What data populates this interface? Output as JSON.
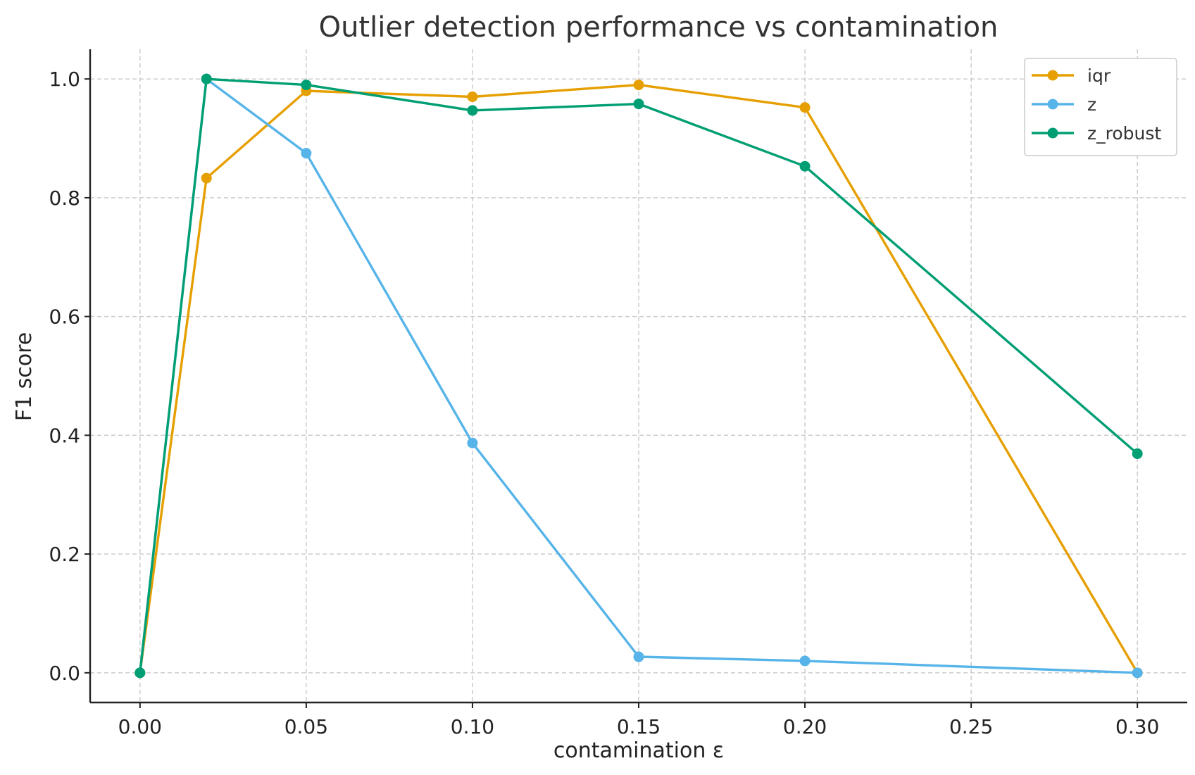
{
  "chart_data": {
    "type": "line",
    "title": "Outlier detection performance vs contamination",
    "xlabel": "contamination ε",
    "ylabel": "F1 score",
    "xlim": [
      -0.015,
      0.315
    ],
    "ylim": [
      -0.05,
      1.05
    ],
    "xticks": [
      0.0,
      0.05,
      0.1,
      0.15,
      0.2,
      0.25,
      0.3
    ],
    "xtick_labels": [
      "0.00",
      "0.05",
      "0.10",
      "0.15",
      "0.20",
      "0.25",
      "0.30"
    ],
    "yticks": [
      0.0,
      0.2,
      0.4,
      0.6,
      0.8,
      1.0
    ],
    "ytick_labels": [
      "0.0",
      "0.2",
      "0.4",
      "0.6",
      "0.8",
      "1.0"
    ],
    "grid": true,
    "legend_position": "top-right",
    "x": [
      0.0,
      0.02,
      0.05,
      0.1,
      0.15,
      0.2,
      0.3
    ],
    "series": [
      {
        "name": "iqr",
        "color": "#E69F00",
        "values": [
          0.0,
          0.833,
          0.98,
          0.97,
          0.99,
          0.952,
          0.0
        ]
      },
      {
        "name": "z",
        "color": "#56B4E9",
        "values": [
          0.0,
          1.0,
          0.875,
          0.387,
          0.027,
          0.02,
          0.0
        ]
      },
      {
        "name": "z_robust",
        "color": "#009E73",
        "values": [
          0.0,
          1.0,
          0.99,
          0.947,
          0.958,
          0.853,
          0.369
        ]
      }
    ]
  }
}
